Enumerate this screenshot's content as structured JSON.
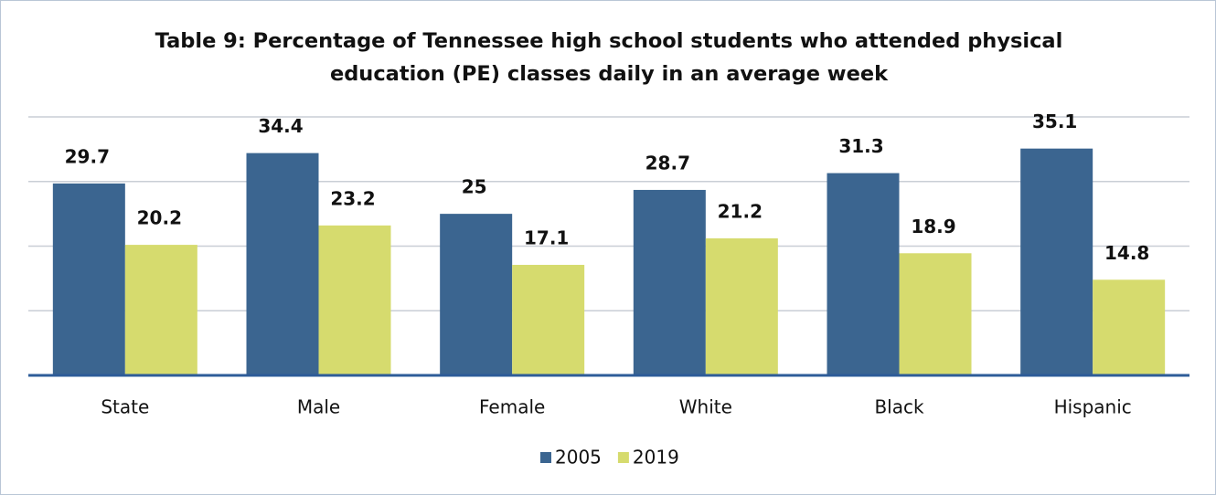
{
  "chart_data": {
    "type": "bar",
    "title": "Table 9: Percentage of Tennessee high school students who attended physical education (PE) classes daily in an average week",
    "categories": [
      "State",
      "Male",
      "Female",
      "White",
      "Black",
      "Hispanic"
    ],
    "series": [
      {
        "name": "2005",
        "color": "#3b6590",
        "values": [
          29.7,
          34.4,
          25,
          28.7,
          31.3,
          35.1
        ]
      },
      {
        "name": "2019",
        "color": "#d6db6e",
        "values": [
          20.2,
          23.2,
          17.1,
          21.2,
          18.9,
          14.8
        ]
      }
    ],
    "ylim": [
      0,
      40
    ],
    "yticks": [
      0,
      10,
      20,
      30,
      40
    ],
    "grid": true,
    "legend": "bottom"
  }
}
